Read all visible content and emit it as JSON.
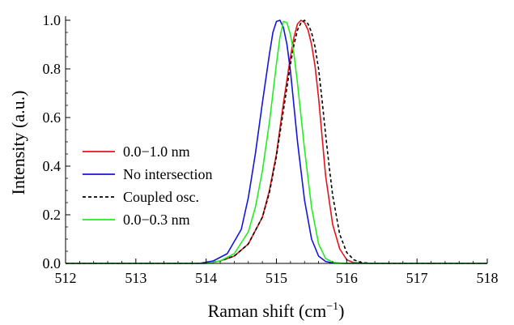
{
  "chart_data": {
    "type": "line",
    "xlabel": "Raman shift (cm",
    "xlabel_sup": "−1",
    "xlabel_close": ")",
    "ylabel": "Intensity (a.u.)",
    "xlim": [
      512,
      518
    ],
    "ylim": [
      0,
      1.0
    ],
    "xticks": [
      512,
      513,
      514,
      515,
      516,
      517,
      518
    ],
    "yticks": [
      0.0,
      0.2,
      0.4,
      0.6,
      0.8,
      1.0
    ],
    "ytick_labels": [
      "0.0",
      "0.2",
      "0.4",
      "0.6",
      "0.8",
      "1.0"
    ],
    "legend_position": "left-center",
    "series": [
      {
        "name": "0.0−1.0 nm",
        "color": "#e8131b",
        "dash": "solid",
        "x": [
          512.0,
          514.0,
          514.2,
          514.4,
          514.6,
          514.8,
          514.9,
          515.0,
          515.1,
          515.2,
          515.25,
          515.3,
          515.35,
          515.4,
          515.45,
          515.5,
          515.55,
          515.6,
          515.65,
          515.7,
          515.8,
          515.9,
          516.0,
          516.1,
          516.3,
          518.0
        ],
        "y": [
          0.0,
          0.0,
          0.01,
          0.03,
          0.08,
          0.19,
          0.3,
          0.45,
          0.66,
          0.85,
          0.93,
          0.985,
          1.0,
          0.99,
          0.96,
          0.9,
          0.81,
          0.68,
          0.52,
          0.36,
          0.16,
          0.06,
          0.015,
          0.003,
          0.0,
          0.0
        ]
      },
      {
        "name": "No intersection",
        "color": "#1414e0",
        "dash": "solid",
        "x": [
          512.0,
          513.9,
          514.1,
          514.3,
          514.5,
          514.6,
          514.7,
          514.8,
          514.9,
          514.95,
          515.0,
          515.05,
          515.1,
          515.15,
          515.2,
          515.3,
          515.4,
          515.5,
          515.6,
          515.7,
          515.8,
          516.0,
          518.0
        ],
        "y": [
          0.0,
          0.0,
          0.01,
          0.04,
          0.14,
          0.27,
          0.45,
          0.66,
          0.86,
          0.95,
          0.995,
          1.0,
          0.97,
          0.9,
          0.79,
          0.5,
          0.26,
          0.1,
          0.03,
          0.008,
          0.002,
          0.0,
          0.0
        ]
      },
      {
        "name": "Coupled osc.",
        "color": "#000000",
        "dash": "dashed",
        "x": [
          512.0,
          514.0,
          514.2,
          514.4,
          514.6,
          514.8,
          514.9,
          515.0,
          515.1,
          515.2,
          515.25,
          515.3,
          515.35,
          515.4,
          515.45,
          515.5,
          515.55,
          515.6,
          515.65,
          515.7,
          515.75,
          515.8,
          515.9,
          516.0,
          516.1,
          516.2,
          516.35,
          518.0
        ],
        "y": [
          0.0,
          0.0,
          0.01,
          0.03,
          0.08,
          0.19,
          0.29,
          0.44,
          0.63,
          0.82,
          0.9,
          0.96,
          0.99,
          1.0,
          0.985,
          0.95,
          0.89,
          0.8,
          0.67,
          0.53,
          0.4,
          0.28,
          0.12,
          0.045,
          0.015,
          0.004,
          0.0,
          0.0
        ]
      },
      {
        "name": "0.0−0.3 nm",
        "color": "#22ee22",
        "dash": "solid",
        "x": [
          512.0,
          514.0,
          514.2,
          514.4,
          514.6,
          514.7,
          514.8,
          514.9,
          515.0,
          515.05,
          515.1,
          515.15,
          515.2,
          515.25,
          515.3,
          515.4,
          515.5,
          515.6,
          515.7,
          515.8,
          515.9,
          516.1,
          518.0
        ],
        "y": [
          0.0,
          0.0,
          0.01,
          0.04,
          0.13,
          0.23,
          0.38,
          0.58,
          0.82,
          0.93,
          0.995,
          0.99,
          0.94,
          0.86,
          0.74,
          0.47,
          0.23,
          0.08,
          0.02,
          0.005,
          0.001,
          0.0,
          0.0
        ]
      }
    ]
  }
}
